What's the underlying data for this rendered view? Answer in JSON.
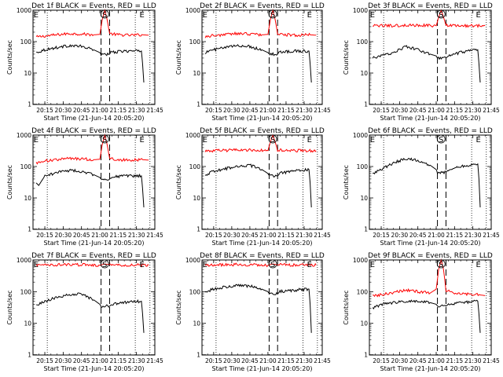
{
  "chart_data": [
    {
      "type": "line",
      "title": "Det 1f BLACK = Events, RED = LLD",
      "xlabel": "Start Time (21-Jun-14 20:05:20)",
      "ylabel": "Counts/sec",
      "y_scale": "log",
      "ylim": [
        1,
        1000
      ],
      "xlim": [
        "20:05:20",
        "21:45:00"
      ],
      "x_ticks": [
        "20:15",
        "20:30",
        "20:45",
        "21:00",
        "21:15",
        "21:30",
        "21:45"
      ],
      "y_ticks": [
        "1",
        "10",
        "100",
        "1000"
      ],
      "markers": {
        "E_start": "20:09",
        "S": "21:04",
        "E_end": "21:35"
      },
      "dashed_lines": [
        "21:01",
        "21:08"
      ],
      "dotted_lines": [
        "20:17",
        "21:29",
        "21:41"
      ],
      "series": [
        {
          "color": "#ff0000",
          "kind": "red",
          "x": [
            "20:08",
            "20:15",
            "20:25",
            "20:35",
            "20:45",
            "20:55",
            "21:00",
            "21:02",
            "21:04",
            "21:06",
            "21:08",
            "21:15",
            "21:25",
            "21:35",
            "21:40"
          ],
          "y": [
            140,
            150,
            165,
            180,
            175,
            165,
            170,
            500,
            1000,
            500,
            180,
            165,
            160,
            165,
            160
          ]
        },
        {
          "color": "#000000",
          "kind": "black",
          "x": [
            "20:08",
            "20:15",
            "20:25",
            "20:35",
            "20:45",
            "20:55",
            "21:00",
            "21:01",
            "21:08",
            "21:09",
            "21:20",
            "21:34",
            "21:35",
            "21:36"
          ],
          "y": [
            45,
            55,
            65,
            75,
            70,
            55,
            45,
            40,
            40,
            45,
            50,
            50,
            20,
            5
          ]
        }
      ]
    },
    {
      "type": "line",
      "title": "Det 2f BLACK = Events, RED = LLD",
      "xlabel": "Start Time (21-Jun-14 20:05:20)",
      "ylabel": "Counts/sec",
      "y_scale": "log",
      "ylim": [
        1,
        1000
      ],
      "xlim": [
        "20:05:20",
        "21:45:00"
      ],
      "x_ticks": [
        "20:15",
        "20:30",
        "20:45",
        "21:00",
        "21:15",
        "21:30",
        "21:45"
      ],
      "y_ticks": [
        "1",
        "10",
        "100",
        "1000"
      ],
      "markers": {
        "E_start": "20:09",
        "S": "21:04",
        "E_end": "21:35"
      },
      "dashed_lines": [
        "21:01",
        "21:08"
      ],
      "dotted_lines": [
        "20:17",
        "21:29",
        "21:41"
      ],
      "series": [
        {
          "color": "#ff0000",
          "kind": "red",
          "x": [
            "20:08",
            "20:15",
            "20:25",
            "20:35",
            "20:45",
            "20:55",
            "21:00",
            "21:02",
            "21:04",
            "21:06",
            "21:08",
            "21:15",
            "21:25",
            "21:35",
            "21:40"
          ],
          "y": [
            145,
            155,
            170,
            180,
            175,
            165,
            170,
            500,
            1000,
            500,
            180,
            165,
            160,
            165,
            160
          ]
        },
        {
          "color": "#000000",
          "kind": "black",
          "x": [
            "20:08",
            "20:15",
            "20:25",
            "20:35",
            "20:45",
            "20:55",
            "21:00",
            "21:01",
            "21:08",
            "21:09",
            "21:20",
            "21:34",
            "21:35",
            "21:36"
          ],
          "y": [
            45,
            55,
            65,
            75,
            70,
            55,
            45,
            40,
            40,
            45,
            50,
            50,
            20,
            5
          ]
        }
      ]
    },
    {
      "type": "line",
      "title": "Det 3f BLACK = Events, RED = LLD",
      "xlabel": "Start Time (21-Jun-14 20:05:20)",
      "ylabel": "Counts/sec",
      "y_scale": "log",
      "ylim": [
        1,
        1000
      ],
      "xlim": [
        "20:05:20",
        "21:45:00"
      ],
      "x_ticks": [
        "20:15",
        "20:30",
        "20:45",
        "21:00",
        "21:15",
        "21:30",
        "21:45"
      ],
      "y_ticks": [
        "1",
        "10",
        "100",
        "1000"
      ],
      "markers": {
        "E_start": "20:09",
        "S": "21:04",
        "E_end": "21:35"
      },
      "dashed_lines": [
        "21:01",
        "21:08"
      ],
      "dotted_lines": [
        "20:17",
        "21:29",
        "21:41"
      ],
      "series": [
        {
          "color": "#ff0000",
          "kind": "red",
          "x": [
            "20:08",
            "20:20",
            "20:35",
            "20:50",
            "21:00",
            "21:02",
            "21:04",
            "21:06",
            "21:08",
            "21:20",
            "21:40"
          ],
          "y": [
            320,
            320,
            330,
            330,
            320,
            600,
            1000,
            600,
            330,
            320,
            320
          ]
        },
        {
          "color": "#000000",
          "kind": "black",
          "x": [
            "20:08",
            "20:15",
            "20:25",
            "20:35",
            "20:45",
            "20:55",
            "21:00",
            "21:01",
            "21:08",
            "21:10",
            "21:20",
            "21:34",
            "21:35",
            "21:36"
          ],
          "y": [
            30,
            35,
            45,
            70,
            55,
            40,
            35,
            30,
            30,
            35,
            45,
            55,
            20,
            5
          ]
        }
      ]
    },
    {
      "type": "line",
      "title": "Det 4f BLACK = Events, RED = LLD",
      "xlabel": "Start Time (21-Jun-14 20:05:20)",
      "ylabel": "Counts/sec",
      "y_scale": "log",
      "ylim": [
        1,
        1000
      ],
      "xlim": [
        "20:05:20",
        "21:45:00"
      ],
      "x_ticks": [
        "20:15",
        "20:30",
        "20:45",
        "21:00",
        "21:15",
        "21:30",
        "21:45"
      ],
      "y_ticks": [
        "1",
        "10",
        "100",
        "1000"
      ],
      "markers": {
        "E_start": "20:09",
        "S": "21:04",
        "E_end": "21:35"
      },
      "dashed_lines": [
        "21:01",
        "21:08"
      ],
      "dotted_lines": [
        "20:17",
        "21:29",
        "21:41"
      ],
      "series": [
        {
          "color": "#ff0000",
          "kind": "red",
          "x": [
            "20:08",
            "20:15",
            "20:25",
            "20:35",
            "20:45",
            "20:55",
            "21:00",
            "21:02",
            "21:04",
            "21:06",
            "21:08",
            "21:15",
            "21:25",
            "21:35",
            "21:40"
          ],
          "y": [
            130,
            150,
            165,
            180,
            175,
            165,
            170,
            500,
            1000,
            500,
            180,
            165,
            160,
            165,
            160
          ]
        },
        {
          "color": "#000000",
          "kind": "black",
          "x": [
            "20:08",
            "20:10",
            "20:15",
            "20:25",
            "20:35",
            "20:45",
            "20:55",
            "21:00",
            "21:01",
            "21:08",
            "21:09",
            "21:20",
            "21:34",
            "21:35",
            "21:36"
          ],
          "y": [
            30,
            25,
            50,
            65,
            75,
            70,
            55,
            45,
            40,
            40,
            45,
            50,
            50,
            20,
            5
          ]
        }
      ]
    },
    {
      "type": "line",
      "title": "Det 5f BLACK = Events, RED = LLD",
      "xlabel": "Start Time (21-Jun-14 20:05:20)",
      "ylabel": "Counts/sec",
      "y_scale": "log",
      "ylim": [
        1,
        1000
      ],
      "xlim": [
        "20:05:20",
        "21:45:00"
      ],
      "x_ticks": [
        "20:15",
        "20:30",
        "20:45",
        "21:00",
        "21:15",
        "21:30",
        "21:45"
      ],
      "y_ticks": [
        "1",
        "10",
        "100",
        "1000"
      ],
      "markers": {
        "E_start": "20:09",
        "S": "21:04",
        "E_end": "21:35"
      },
      "dashed_lines": [
        "21:01",
        "21:08"
      ],
      "dotted_lines": [
        "20:17",
        "21:29",
        "21:41"
      ],
      "series": [
        {
          "color": "#ff0000",
          "kind": "red",
          "x": [
            "20:08",
            "20:20",
            "20:35",
            "20:50",
            "21:00",
            "21:02",
            "21:04",
            "21:06",
            "21:08",
            "21:20",
            "21:40"
          ],
          "y": [
            310,
            320,
            340,
            330,
            320,
            600,
            1000,
            600,
            330,
            320,
            320
          ]
        },
        {
          "color": "#000000",
          "kind": "black",
          "x": [
            "20:08",
            "20:15",
            "20:25",
            "20:35",
            "20:45",
            "20:55",
            "21:00",
            "21:01",
            "21:08",
            "21:10",
            "21:20",
            "21:34",
            "21:35",
            "21:36"
          ],
          "y": [
            55,
            70,
            85,
            105,
            110,
            80,
            60,
            50,
            50,
            60,
            70,
            80,
            30,
            5
          ]
        }
      ]
    },
    {
      "type": "line",
      "title": "Det 6f BLACK = Events, RED = LLD",
      "xlabel": "Start Time (21-Jun-14 20:05:20)",
      "ylabel": "Counts/sec",
      "y_scale": "log",
      "ylim": [
        1,
        1000
      ],
      "xlim": [
        "20:05:20",
        "21:45:00"
      ],
      "x_ticks": [
        "20:15",
        "20:30",
        "20:45",
        "21:00",
        "21:15",
        "21:30",
        "21:45"
      ],
      "y_ticks": [
        "1",
        "10",
        "100",
        "1000"
      ],
      "markers": {
        "E_start": "20:09",
        "S": "21:04",
        "E_end": "21:35"
      },
      "dashed_lines": [
        "21:01",
        "21:08"
      ],
      "dotted_lines": [
        "20:17",
        "21:29",
        "21:41"
      ],
      "series": [
        {
          "color": "#000000",
          "kind": "black",
          "x": [
            "20:08",
            "20:15",
            "20:25",
            "20:35",
            "20:45",
            "20:55",
            "21:00",
            "21:01",
            "21:08",
            "21:10",
            "21:20",
            "21:34",
            "21:35",
            "21:36"
          ],
          "y": [
            60,
            80,
            130,
            180,
            160,
            110,
            80,
            65,
            65,
            80,
            100,
            120,
            40,
            5
          ]
        }
      ]
    },
    {
      "type": "line",
      "title": "Det 7f BLACK = Events, RED = LLD",
      "xlabel": "Start Time (21-Jun-14 20:05:20)",
      "ylabel": "Counts/sec",
      "y_scale": "log",
      "ylim": [
        1,
        1000
      ],
      "xlim": [
        "20:05:20",
        "21:45:00"
      ],
      "x_ticks": [
        "20:15",
        "20:30",
        "20:45",
        "21:00",
        "21:15",
        "21:30",
        "21:45"
      ],
      "y_ticks": [
        "1",
        "10",
        "100",
        "1000"
      ],
      "markers": {
        "E_start": "20:09",
        "S": "21:04",
        "E_end": "21:35"
      },
      "dashed_lines": [
        "21:01",
        "21:08"
      ],
      "dotted_lines": [
        "20:17",
        "21:29",
        "21:41"
      ],
      "series": [
        {
          "color": "#ff0000",
          "kind": "red",
          "x": [
            "20:08",
            "20:20",
            "20:35",
            "20:50",
            "21:00",
            "21:04",
            "21:08",
            "21:20",
            "21:40"
          ],
          "y": [
            680,
            700,
            720,
            700,
            680,
            750,
            700,
            690,
            690
          ]
        },
        {
          "color": "#000000",
          "kind": "black",
          "x": [
            "20:08",
            "20:15",
            "20:25",
            "20:35",
            "20:45",
            "20:55",
            "21:00",
            "21:01",
            "21:08",
            "21:10",
            "21:20",
            "21:34",
            "21:35",
            "21:36"
          ],
          "y": [
            35,
            50,
            65,
            80,
            85,
            55,
            40,
            35,
            35,
            40,
            45,
            50,
            20,
            5
          ]
        }
      ]
    },
    {
      "type": "line",
      "title": "Det 8f BLACK = Events, RED = LLD",
      "xlabel": "Start Time (21-Jun-14 20:05:20)",
      "ylabel": "Counts/sec",
      "y_scale": "log",
      "ylim": [
        1,
        1000
      ],
      "xlim": [
        "20:05:20",
        "21:45:00"
      ],
      "x_ticks": [
        "20:15",
        "20:30",
        "20:45",
        "21:00",
        "21:15",
        "21:30",
        "21:45"
      ],
      "y_ticks": [
        "1",
        "10",
        "100",
        "1000"
      ],
      "markers": {
        "E_start": "20:09",
        "S": "21:04",
        "E_end": "21:35"
      },
      "dashed_lines": [
        "21:01",
        "21:08"
      ],
      "dotted_lines": [
        "20:17",
        "21:29",
        "21:41"
      ],
      "series": [
        {
          "color": "#ff0000",
          "kind": "red",
          "x": [
            "20:08",
            "20:20",
            "20:35",
            "20:50",
            "21:00",
            "21:04",
            "21:08",
            "21:20",
            "21:40"
          ],
          "y": [
            680,
            700,
            720,
            700,
            680,
            750,
            700,
            690,
            690
          ]
        },
        {
          "color": "#000000",
          "kind": "black",
          "x": [
            "20:08",
            "20:15",
            "20:25",
            "20:35",
            "20:45",
            "20:55",
            "21:00",
            "21:01",
            "21:08",
            "21:10",
            "21:20",
            "21:34",
            "21:35",
            "21:36"
          ],
          "y": [
            100,
            120,
            140,
            160,
            150,
            120,
            100,
            85,
            85,
            100,
            110,
            120,
            40,
            5
          ]
        }
      ]
    },
    {
      "type": "line",
      "title": "Det 9f BLACK = Events, RED = LLD",
      "xlabel": "Start Time (21-Jun-14 20:05:20)",
      "ylabel": "Counts/sec",
      "y_scale": "log",
      "ylim": [
        1,
        1000
      ],
      "xlim": [
        "20:05:20",
        "21:45:00"
      ],
      "x_ticks": [
        "20:15",
        "20:30",
        "20:45",
        "21:00",
        "21:15",
        "21:30",
        "21:45"
      ],
      "y_ticks": [
        "1",
        "10",
        "100",
        "1000"
      ],
      "markers": {
        "E_start": "20:09",
        "S": "21:04",
        "E_end": "21:35"
      },
      "dashed_lines": [
        "21:01",
        "21:08"
      ],
      "dotted_lines": [
        "20:17",
        "21:29",
        "21:41"
      ],
      "series": [
        {
          "color": "#ff0000",
          "kind": "red",
          "x": [
            "20:08",
            "20:15",
            "20:25",
            "20:35",
            "20:45",
            "20:55",
            "21:00",
            "21:02",
            "21:04",
            "21:06",
            "21:08",
            "21:15",
            "21:25",
            "21:35",
            "21:40"
          ],
          "y": [
            75,
            80,
            95,
            110,
            100,
            90,
            120,
            500,
            1000,
            500,
            110,
            90,
            85,
            80,
            75
          ]
        },
        {
          "color": "#000000",
          "kind": "black",
          "x": [
            "20:08",
            "20:15",
            "20:25",
            "20:35",
            "20:45",
            "20:55",
            "21:00",
            "21:01",
            "21:08",
            "21:10",
            "21:20",
            "21:34",
            "21:35",
            "21:36"
          ],
          "y": [
            30,
            40,
            45,
            50,
            50,
            45,
            40,
            35,
            35,
            40,
            45,
            50,
            20,
            5
          ]
        }
      ]
    }
  ]
}
